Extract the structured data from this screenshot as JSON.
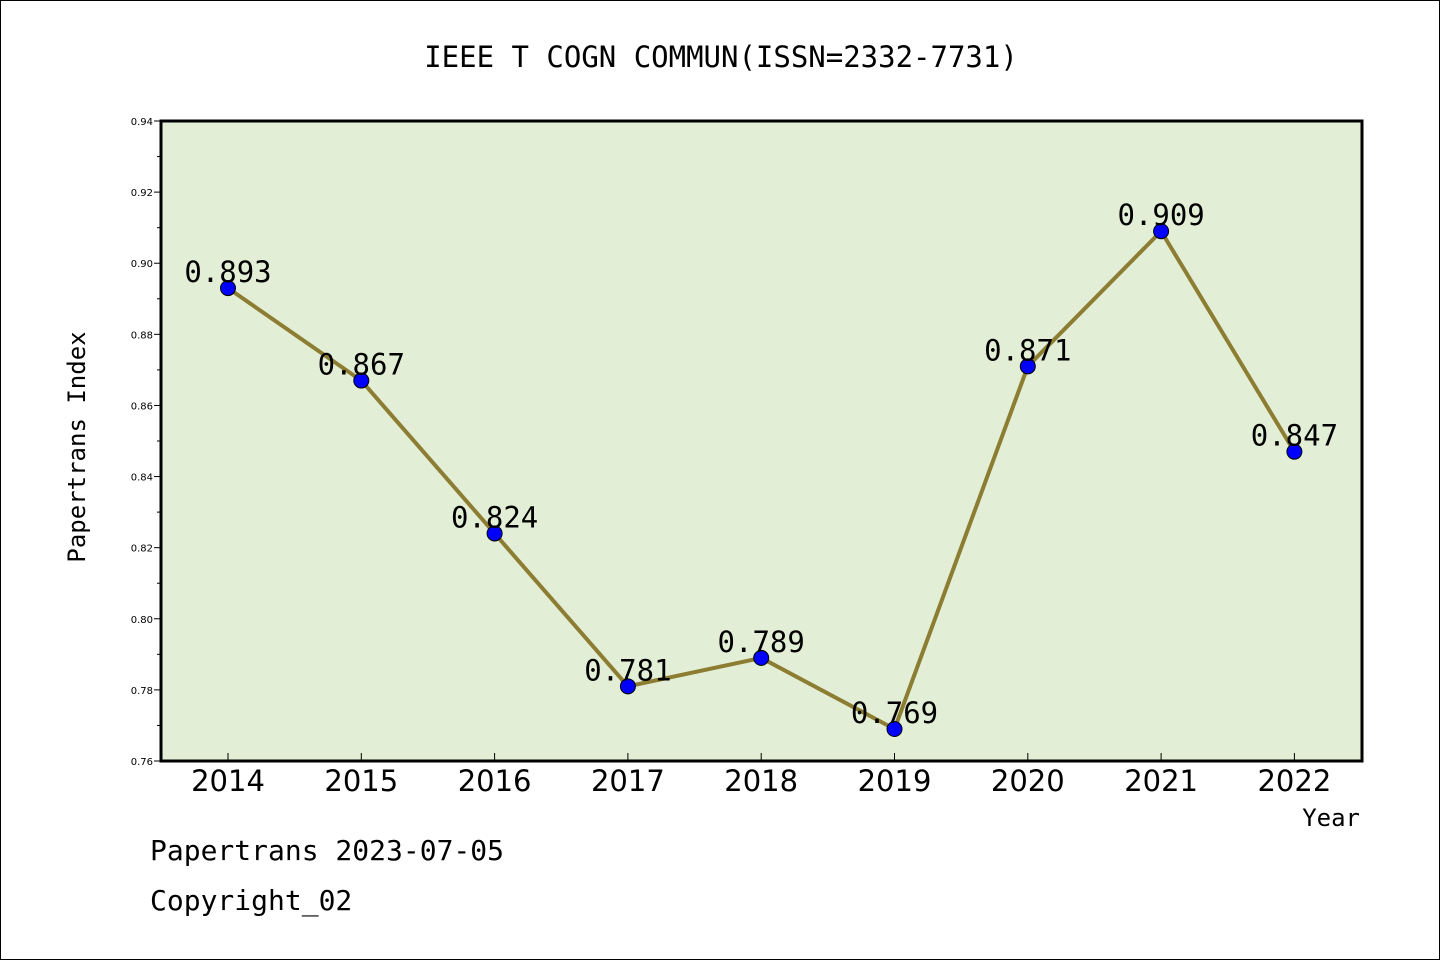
{
  "footer": {
    "date_line": "Papertrans 2023-07-05",
    "copyright": "Copyright_02"
  },
  "chart_data": {
    "type": "line",
    "title": "IEEE T COGN COMMUN(ISSN=2332-7731)",
    "xlabel": "Year",
    "ylabel": "Papertrans Index",
    "categories": [
      "2014",
      "2015",
      "2016",
      "2017",
      "2018",
      "2019",
      "2020",
      "2021",
      "2022"
    ],
    "values": [
      0.893,
      0.867,
      0.824,
      0.781,
      0.789,
      0.769,
      0.871,
      0.909,
      0.847
    ],
    "data_labels": [
      "0.893",
      "0.867",
      "0.824",
      "0.781",
      "0.789",
      "0.769",
      "0.871",
      "0.909",
      "0.847"
    ],
    "ylim": [
      0.76,
      0.94
    ],
    "yticks": [
      "0.76",
      "0.78",
      "0.80",
      "0.82",
      "0.84",
      "0.86",
      "0.88",
      "0.90",
      "0.92",
      "0.94"
    ],
    "grid": false,
    "colors": {
      "plot_background": "#e2efd6",
      "line": "#8c7d32",
      "marker": "#0000ff"
    }
  }
}
